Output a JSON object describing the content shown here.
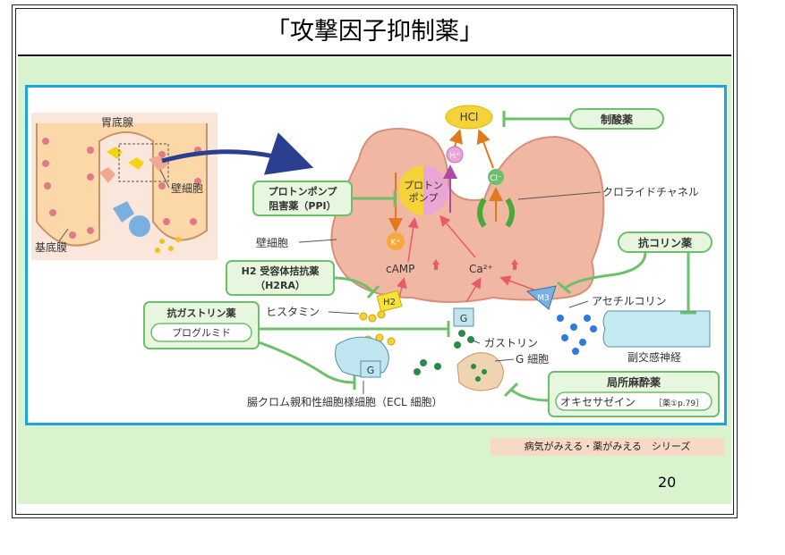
{
  "slide": {
    "title": "「攻撃因子抑制薬」",
    "series": "病気がみえる・薬がみえる　シリーズ",
    "page_number": "20"
  },
  "figure": {
    "inset": {
      "gland": "胃底腺",
      "parietal": "壁細胞",
      "basement": "基底膜"
    },
    "cell": {
      "label": "壁細胞",
      "pump": [
        "プロトン",
        "ポンプ"
      ],
      "hcl": "HCl",
      "h_plus": "H⁺",
      "cl_minus": "Cl⁻",
      "k_plus": "K⁺",
      "camp": "cAMP",
      "ca": "Ca²⁺",
      "chloride_channel": "クロライドチャネル"
    },
    "receptors": {
      "h2": "H2",
      "g": "G",
      "m3": "M3",
      "ecl_g": "G"
    },
    "labels": {
      "histamine": "ヒスタミン",
      "gastrin": "ガストリン",
      "g_cell": "G 細胞",
      "acetylcholine": "アセチルコリン",
      "parasympathetic": "副交感神経",
      "ecl": "腸クロム親和性細胞様細胞（ECL 細胞）"
    },
    "drugs": {
      "antacid": "制酸薬",
      "ppi": [
        "プロトンポンプ",
        "阻害薬（PPI）"
      ],
      "h2ra": [
        "H2 受容体拮抗薬",
        "（H2RA）"
      ],
      "antigastrin": "抗ガストリン薬",
      "proglumide": "プログルミド",
      "anticholinergic": "抗コリン薬",
      "local_anesthetic": "局所麻酔薬",
      "oxethazaine": "オキセサゼイン",
      "oxethazaine_ref": "［薬①p.79］"
    }
  },
  "colors": {
    "frame_blue": "#1ea4e6",
    "slide_green": "#d9f3cf",
    "cell_fill": "#f0b8a2",
    "drug_green": "#6cc06a",
    "series_bg": "#f7d9c7"
  }
}
